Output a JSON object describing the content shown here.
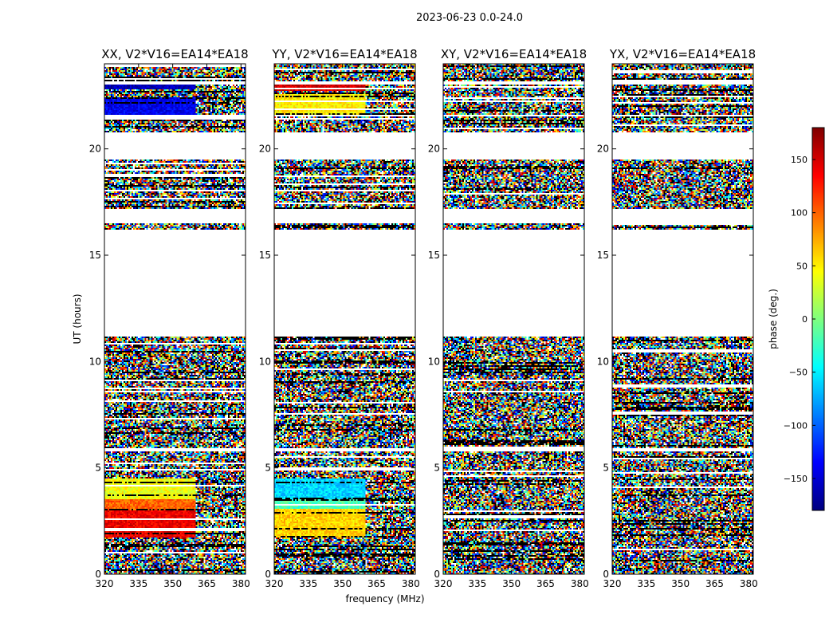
{
  "chart_data": {
    "type": "heatmap",
    "title": "2023-06-23 0.0-24.0",
    "xlabel": "frequency (MHz)",
    "ylabel": "UT (hours)",
    "xlim": [
      320,
      382
    ],
    "ylim": [
      0,
      24
    ],
    "x_ticks": [
      320,
      335,
      350,
      365,
      380
    ],
    "y_ticks": [
      0,
      5,
      10,
      15,
      20
    ],
    "colorbar": {
      "label": "phase (deg.)",
      "range": [
        -180,
        180
      ],
      "ticks": [
        150,
        100,
        50,
        0,
        -50,
        -100,
        -150
      ],
      "tick_labels": [
        "150",
        "100",
        "50",
        "0",
        "−50",
        "−100",
        "−150"
      ],
      "colormap": [
        "#00007f",
        "#0000ff",
        "#007fff",
        "#00ffff",
        "#7fff7f",
        "#ffff00",
        "#ff7f00",
        "#ff0000",
        "#7f0000"
      ]
    },
    "panels": [
      {
        "name": "XX",
        "title": "XX, V2*V16=EA14*EA18",
        "structured": [
          {
            "t0": 21.6,
            "t1": 22.45,
            "split_mhz": 360,
            "left_phase": -140,
            "right_phase": 40
          },
          {
            "t0": 22.8,
            "t1": 23.0,
            "split_mhz": 360,
            "left_phase": -160,
            "right_phase": 20
          },
          {
            "t0": 1.7,
            "t1": 3.0,
            "split_mhz": 360,
            "left_phase": 140,
            "right_phase": 0
          },
          {
            "t0": 3.0,
            "t1": 3.5,
            "split_mhz": 360,
            "left_phase": 100,
            "right_phase": 0
          },
          {
            "t0": 3.5,
            "t1": 4.5,
            "split_mhz": 360,
            "left_phase": 40,
            "right_phase": 0
          }
        ]
      },
      {
        "name": "YY",
        "title": "YY, V2*V16=EA14*EA18",
        "structured": [
          {
            "t0": 22.7,
            "t1": 23.0,
            "split_mhz": 360,
            "left_phase": 150,
            "right_phase": 20
          },
          {
            "t0": 21.6,
            "t1": 22.6,
            "split_mhz": 360,
            "left_phase": 50,
            "right_phase": 0
          },
          {
            "t0": 1.7,
            "t1": 3.1,
            "split_mhz": 360,
            "left_phase": 60,
            "right_phase": 0
          },
          {
            "t0": 3.1,
            "t1": 3.5,
            "split_mhz": 360,
            "left_phase": -20,
            "right_phase": 0
          },
          {
            "t0": 3.5,
            "t1": 4.5,
            "split_mhz": 360,
            "left_phase": -60,
            "right_phase": 0
          }
        ]
      },
      {
        "name": "XY",
        "title": "XY, V2*V16=EA14*EA18",
        "structured": []
      },
      {
        "name": "YX",
        "title": "YX, V2*V16=EA14*EA18",
        "structured": []
      }
    ],
    "data_bands_ut": [
      [
        0.0,
        1.7
      ],
      [
        1.7,
        4.6
      ],
      [
        4.6,
        5.8
      ],
      [
        5.9,
        6.2
      ],
      [
        6.2,
        7.0
      ],
      [
        7.0,
        8.5
      ],
      [
        8.5,
        9.8
      ],
      [
        9.8,
        11.2
      ],
      [
        16.2,
        16.5
      ],
      [
        17.2,
        19.5
      ],
      [
        20.8,
        21.5
      ],
      [
        21.6,
        23.0
      ],
      [
        23.2,
        24.0
      ]
    ]
  }
}
